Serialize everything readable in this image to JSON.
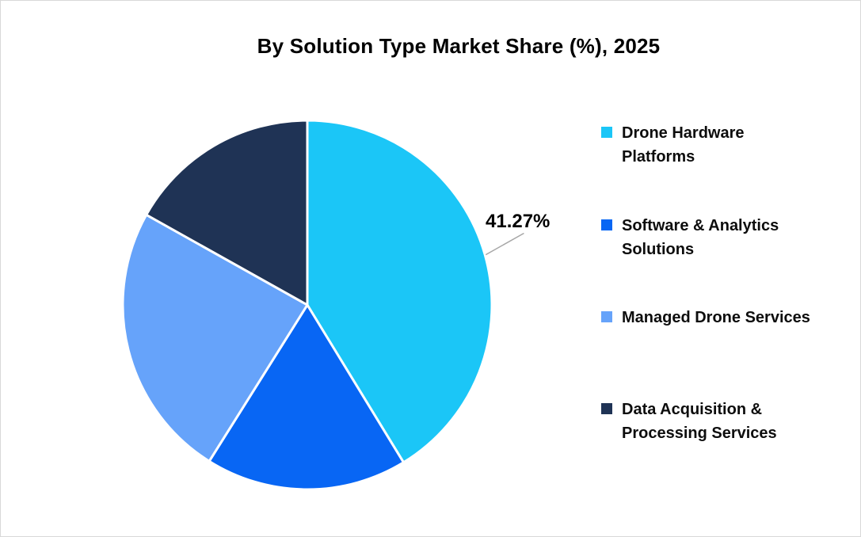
{
  "page": {
    "background": "#FFFFFF",
    "frame_border_color": "#D8D8D8"
  },
  "chart": {
    "title": "By Solution Type Market Share (%), 2025",
    "title_color": "#000000"
  },
  "chart_data": {
    "type": "pie",
    "title": "By Solution Type Market Share (%), 2025",
    "categories": [
      "Drone Hardware Platforms",
      "Software & Analytics Solutions",
      "Managed Drone Services",
      "Data Acquisition & Processing Services"
    ],
    "values": [
      41.27,
      17.65,
      24.2,
      16.88
    ],
    "colors": [
      "#1BC6F7",
      "#0866F4",
      "#66A3FA",
      "#1F3355"
    ],
    "start_angle_deg": 0,
    "direction": "clockwise",
    "slice_border_color": "#FFFFFF",
    "legend_position": "right",
    "data_label": {
      "text": "41.27%",
      "slice_index": 0,
      "leader_line_color": "#A6A6A6"
    }
  },
  "legend": {
    "items": [
      {
        "label": "Drone Hardware Platforms",
        "color": "#1BC6F7"
      },
      {
        "label": "Software & Analytics Solutions",
        "color": "#0866F4"
      },
      {
        "label": "Managed Drone Services",
        "color": "#66A3FA"
      },
      {
        "label": "Data Acquisition & Processing Services",
        "color": "#1F3355"
      }
    ]
  }
}
